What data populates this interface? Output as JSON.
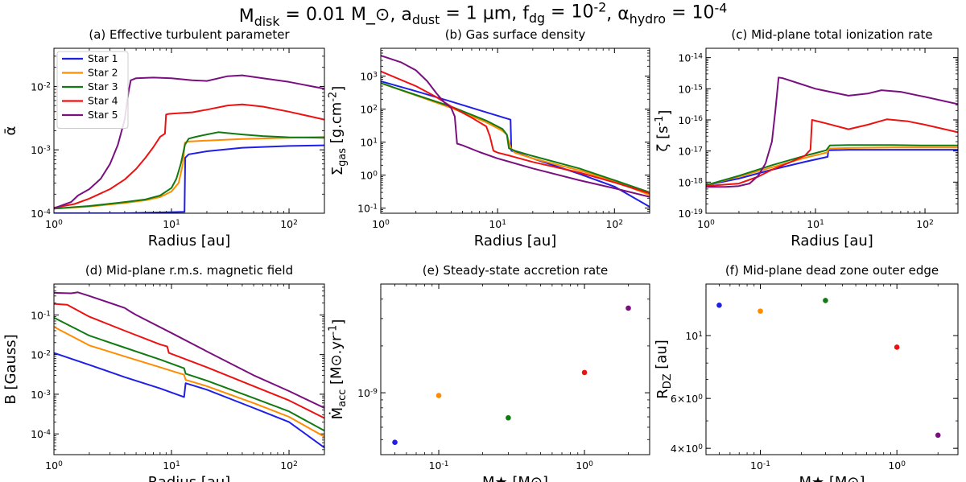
{
  "figure": {
    "suptitle": "M_disk = 0.01 M_⊙, a_dust = 1 μm, f_dg = 10^-2, α_hydro = 10^-4"
  },
  "colors": {
    "Star 1": "#1f1fe6",
    "Star 2": "#ff8c00",
    "Star 3": "#127a12",
    "Star 4": "#ee1111",
    "Star 5": "#7a1080"
  },
  "legend": {
    "panel": "a",
    "placement": "upper-left",
    "entries": [
      "Star 1",
      "Star 2",
      "Star 3",
      "Star 4",
      "Star 5"
    ]
  },
  "chart_data": [
    {
      "id": "a",
      "type": "line",
      "title": "(a) Effective turbulent parameter",
      "xlabel": "Radius [au]",
      "ylabel": "ᾱ",
      "xscale": "log",
      "yscale": "log",
      "xlim": [
        1,
        200
      ],
      "ylim": [
        0.0001,
        0.04
      ],
      "xticks": [
        1,
        10,
        100
      ],
      "xtick_labels": [
        "10^0",
        "10^1",
        "10^2"
      ],
      "yticks": [
        0.0001,
        0.001,
        0.01
      ],
      "ytick_labels": [
        "10^-4",
        "10^-3",
        "10^-2"
      ],
      "series": [
        {
          "name": "Star 1",
          "x": [
            1,
            2,
            4,
            8,
            12.9,
            13.1,
            14,
            20,
            40,
            100,
            200
          ],
          "y": [
            0.0001,
            0.0001,
            0.0001,
            0.000103,
            0.000105,
            0.00075,
            0.00085,
            0.00095,
            0.00108,
            0.00115,
            0.00118
          ]
        },
        {
          "name": "Star 2",
          "x": [
            1,
            2,
            4,
            6,
            8,
            10,
            11.5,
            12.5,
            13,
            14,
            20,
            40,
            100,
            200
          ],
          "y": [
            0.000118,
            0.000128,
            0.000145,
            0.00016,
            0.00018,
            0.00022,
            0.0003,
            0.0006,
            0.0013,
            0.00135,
            0.0014,
            0.00148,
            0.00155,
            0.0016
          ]
        },
        {
          "name": "Star 3",
          "x": [
            1,
            2,
            4,
            6,
            8,
            10,
            11,
            12,
            13,
            14,
            16,
            20,
            25,
            40,
            60,
            100,
            200
          ],
          "y": [
            0.000118,
            0.00013,
            0.00015,
            0.000165,
            0.00019,
            0.00025,
            0.00035,
            0.0006,
            0.0012,
            0.0015,
            0.0016,
            0.00175,
            0.0019,
            0.00175,
            0.00165,
            0.00158,
            0.00155
          ]
        },
        {
          "name": "Star 4",
          "x": [
            1,
            1.5,
            2,
            3,
            4,
            5,
            6,
            7,
            8,
            8.8,
            9.0,
            9.5,
            12,
            15,
            20,
            30,
            40,
            60,
            100,
            200
          ],
          "y": [
            0.000122,
            0.00014,
            0.00017,
            0.00024,
            0.00034,
            0.0005,
            0.00075,
            0.0011,
            0.0016,
            0.0018,
            0.0036,
            0.0037,
            0.0038,
            0.0039,
            0.0043,
            0.005,
            0.0052,
            0.0048,
            0.004,
            0.003
          ]
        },
        {
          "name": "Star 5",
          "x": [
            1,
            1.4,
            1.6,
            2,
            2.5,
            3,
            3.5,
            4,
            4.3,
            4.5,
            5,
            7,
            10,
            15,
            20,
            30,
            40,
            60,
            100,
            200
          ],
          "y": [
            0.00012,
            0.00015,
            0.00019,
            0.00024,
            0.00035,
            0.0006,
            0.0012,
            0.003,
            0.008,
            0.0125,
            0.0135,
            0.0138,
            0.0135,
            0.0125,
            0.0122,
            0.0145,
            0.015,
            0.0135,
            0.0118,
            0.0092
          ]
        }
      ]
    },
    {
      "id": "b",
      "type": "line",
      "title": "(b) Gas surface density",
      "xlabel": "Radius [au]",
      "ylabel": "Σ_gas [g.cm^-2]",
      "xscale": "log",
      "yscale": "log",
      "xlim": [
        1,
        200
      ],
      "ylim": [
        0.07,
        7000
      ],
      "xticks": [
        1,
        10,
        100
      ],
      "xtick_labels": [
        "10^0",
        "10^1",
        "10^2"
      ],
      "yticks": [
        0.1,
        1,
        10,
        100,
        1000
      ],
      "ytick_labels": [
        "10^-1",
        "10^0",
        "10^1",
        "10^2",
        "10^3"
      ],
      "series": [
        {
          "name": "Star 1",
          "x": [
            1,
            2,
            4,
            8,
            12.9,
            13.1,
            20,
            50,
            100,
            200
          ],
          "y": [
            700,
            350,
            170,
            80,
            48,
            5.5,
            3.2,
            1.1,
            0.45,
            0.11
          ]
        },
        {
          "name": "Star 2",
          "x": [
            1,
            2,
            4,
            8,
            11,
            12,
            13,
            14,
            20,
            50,
            100,
            200
          ],
          "y": [
            620,
            260,
            110,
            40,
            22,
            17,
            6.5,
            4.8,
            3.2,
            1.4,
            0.65,
            0.25
          ]
        },
        {
          "name": "Star 3",
          "x": [
            1,
            2,
            4,
            8,
            11,
            12,
            12.5,
            14,
            20,
            50,
            100,
            200
          ],
          "y": [
            620,
            270,
            120,
            45,
            25,
            17,
            6.5,
            5.5,
            3.8,
            1.6,
            0.7,
            0.3
          ]
        },
        {
          "name": "Star 4",
          "x": [
            1,
            2,
            3,
            4,
            6,
            8,
            8.6,
            9.2,
            10,
            13,
            20,
            50,
            100,
            200
          ],
          "y": [
            1400,
            500,
            230,
            120,
            55,
            30,
            15,
            5.5,
            4.8,
            3.8,
            2.5,
            1.2,
            0.6,
            0.28
          ]
        },
        {
          "name": "Star 5",
          "x": [
            1,
            1.5,
            2,
            2.5,
            3,
            3.5,
            4,
            4.3,
            4.5,
            5,
            7,
            10,
            20,
            50,
            100,
            200
          ],
          "y": [
            4200,
            2600,
            1500,
            700,
            300,
            160,
            110,
            60,
            9,
            8,
            5,
            3.2,
            1.6,
            0.7,
            0.4,
            0.22
          ]
        }
      ]
    },
    {
      "id": "c",
      "type": "line",
      "title": "(c) Mid-plane total ionization rate",
      "xlabel": "Radius [au]",
      "ylabel": "ζ [s^-1]",
      "xscale": "log",
      "yscale": "log",
      "xlim": [
        1,
        200
      ],
      "ylim": [
        1e-19,
        2e-14
      ],
      "xticks": [
        1,
        10,
        100
      ],
      "xtick_labels": [
        "10^0",
        "10^1",
        "10^2"
      ],
      "yticks": [
        1e-19,
        1e-18,
        1e-17,
        1e-16,
        1e-15,
        1e-14
      ],
      "ytick_labels": [
        "10^-19",
        "10^-18",
        "10^-17",
        "10^-16",
        "10^-15",
        "10^-14"
      ],
      "series": [
        {
          "name": "Star 1",
          "x": [
            1,
            2,
            4,
            8,
            12.9,
            13.1,
            20,
            50,
            100,
            200
          ],
          "y": [
            8e-19,
            1.3e-18,
            2.5e-18,
            4.5e-18,
            6.5e-18,
            1.05e-17,
            1.1e-17,
            1.1e-17,
            1.1e-17,
            1.1e-17
          ]
        },
        {
          "name": "Star 2",
          "x": [
            1,
            2,
            4,
            8,
            12.8,
            13.2,
            20,
            50,
            100,
            200
          ],
          "y": [
            8e-19,
            1.5e-18,
            3e-18,
            6e-18,
            9e-18,
            1.2e-17,
            1.25e-17,
            1.3e-17,
            1.3e-17,
            1.3e-17
          ]
        },
        {
          "name": "Star 3",
          "x": [
            1,
            2,
            4,
            8,
            12.5,
            13.5,
            20,
            50,
            100,
            200
          ],
          "y": [
            8e-19,
            1.6e-18,
            3.5e-18,
            7e-18,
            1.05e-17,
            1.5e-17,
            1.55e-17,
            1.55e-17,
            1.5e-17,
            1.5e-17
          ]
        },
        {
          "name": "Star 4",
          "x": [
            1,
            2,
            3,
            4,
            6,
            8,
            9,
            9.3,
            12,
            20,
            30,
            45,
            70,
            100,
            200
          ],
          "y": [
            7.5e-19,
            9e-19,
            1.5e-18,
            2.5e-18,
            4.5e-18,
            7e-18,
            1.1e-17,
            1e-16,
            8e-17,
            5e-17,
            7e-17,
            1.05e-16,
            9e-17,
            7e-17,
            4e-17
          ]
        },
        {
          "name": "Star 5",
          "x": [
            1,
            1.5,
            2,
            2.5,
            3,
            3.5,
            4,
            4.3,
            4.6,
            5,
            7,
            10,
            20,
            30,
            40,
            60,
            100,
            200
          ],
          "y": [
            7e-19,
            7e-19,
            7.5e-19,
            9e-19,
            1.6e-18,
            4e-18,
            2e-17,
            2e-16,
            2.3e-15,
            2.2e-15,
            1.5e-15,
            1e-15,
            6e-16,
            7e-16,
            9e-16,
            8e-16,
            5.5e-16,
            3.2e-16
          ]
        }
      ]
    },
    {
      "id": "d",
      "type": "line",
      "title": "(d) Mid-plane r.m.s. magnetic field",
      "xlabel": "Radius [au]",
      "ylabel": "B [Gauss]",
      "xscale": "log",
      "yscale": "log",
      "xlim": [
        1,
        200
      ],
      "ylim": [
        3e-05,
        0.6
      ],
      "xticks": [
        1,
        10,
        100
      ],
      "xtick_labels": [
        "10^0",
        "10^1",
        "10^2"
      ],
      "yticks": [
        0.0001,
        0.001,
        0.01,
        0.1
      ],
      "ytick_labels": [
        "10^-4",
        "10^-3",
        "10^-2",
        "10^-1"
      ],
      "series": [
        {
          "name": "Star 1",
          "x": [
            1,
            2,
            4,
            8,
            12.8,
            13.2,
            20,
            50,
            100,
            200
          ],
          "y": [
            0.011,
            0.0055,
            0.0027,
            0.0014,
            0.00085,
            0.0019,
            0.0013,
            0.00045,
            0.0002,
            4.5e-05
          ]
        },
        {
          "name": "Star 2",
          "x": [
            1,
            2,
            4,
            8,
            12.8,
            13.2,
            20,
            50,
            100,
            200
          ],
          "y": [
            0.05,
            0.017,
            0.009,
            0.0048,
            0.0031,
            0.0023,
            0.0016,
            0.0006,
            0.00027,
            8.5e-05
          ]
        },
        {
          "name": "Star 3",
          "x": [
            1,
            2,
            4,
            8,
            12.8,
            13.2,
            20,
            50,
            100,
            200
          ],
          "y": [
            0.085,
            0.03,
            0.015,
            0.0075,
            0.0045,
            0.0033,
            0.0022,
            0.0008,
            0.00037,
            0.00012
          ]
        },
        {
          "name": "Star 4",
          "x": [
            1,
            1.3,
            2,
            4,
            8,
            9.2,
            9.5,
            20,
            50,
            100,
            200
          ],
          "y": [
            0.19,
            0.18,
            0.09,
            0.04,
            0.018,
            0.016,
            0.011,
            0.0048,
            0.0016,
            0.0007,
            0.00025
          ]
        },
        {
          "name": "Star 5",
          "x": [
            1,
            1.4,
            1.6,
            2,
            3,
            4,
            4.5,
            5,
            10,
            20,
            50,
            100,
            200
          ],
          "y": [
            0.36,
            0.35,
            0.37,
            0.3,
            0.2,
            0.15,
            0.12,
            0.1,
            0.035,
            0.012,
            0.003,
            0.0012,
            0.00045
          ]
        }
      ]
    },
    {
      "id": "e",
      "type": "scatter",
      "title": "(e) Steady-state accretion rate",
      "xlabel": "M★ [M⊙]",
      "ylabel": "Ṁ_acc [M⊙.yr^-1]",
      "xscale": "log",
      "yscale": "log",
      "xlim": [
        0.04,
        2.8
      ],
      "ylim": [
        4e-10,
        5e-09
      ],
      "xticks": [
        0.1,
        1
      ],
      "xtick_labels": [
        "10^-1",
        "10^0"
      ],
      "yticks": [
        1e-09
      ],
      "ytick_labels": [
        "10^-9"
      ],
      "series": [
        {
          "name": "Star 1",
          "x": [
            0.05
          ],
          "y": [
            4.8e-10
          ]
        },
        {
          "name": "Star 2",
          "x": [
            0.1
          ],
          "y": [
            9.6e-10
          ]
        },
        {
          "name": "Star 3",
          "x": [
            0.3
          ],
          "y": [
            6.9e-10
          ]
        },
        {
          "name": "Star 4",
          "x": [
            1
          ],
          "y": [
            1.35e-09
          ]
        },
        {
          "name": "Star 5",
          "x": [
            2
          ],
          "y": [
            3.5e-09
          ]
        }
      ]
    },
    {
      "id": "f",
      "type": "scatter",
      "title": "(f) Mid-plane dead zone outer edge",
      "xlabel": "M★ [M⊙]",
      "ylabel": "R_DZ [au]",
      "xscale": "log",
      "yscale": "log",
      "xlim": [
        0.04,
        2.8
      ],
      "ylim": [
        3.8,
        15.2
      ],
      "xticks": [
        0.1,
        1
      ],
      "xtick_labels": [
        "10^-1",
        "10^0"
      ],
      "yticks": [
        4,
        6,
        10
      ],
      "ytick_labels": [
        "4×10^0",
        "6×10^0",
        "10^1"
      ],
      "series": [
        {
          "name": "Star 1",
          "x": [
            0.05
          ],
          "y": [
            12.8
          ]
        },
        {
          "name": "Star 2",
          "x": [
            0.1
          ],
          "y": [
            12.2
          ]
        },
        {
          "name": "Star 3",
          "x": [
            0.3
          ],
          "y": [
            13.3
          ]
        },
        {
          "name": "Star 4",
          "x": [
            1
          ],
          "y": [
            9.1
          ]
        },
        {
          "name": "Star 5",
          "x": [
            2
          ],
          "y": [
            4.45
          ]
        }
      ]
    }
  ]
}
